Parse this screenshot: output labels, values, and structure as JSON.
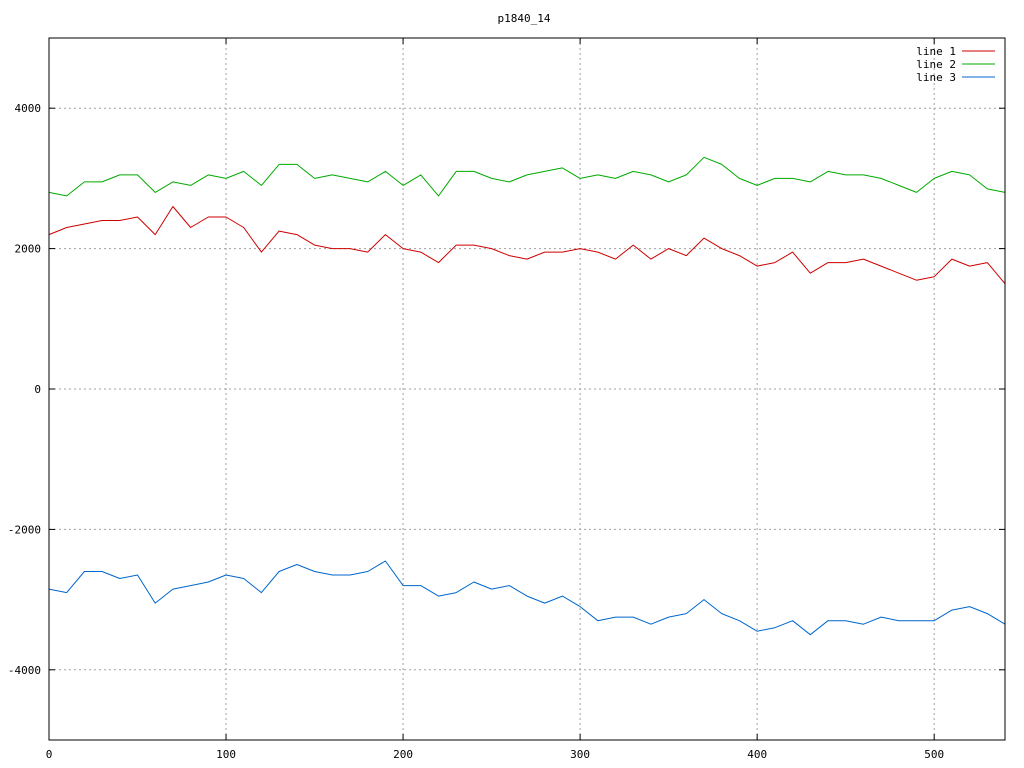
{
  "chart_data": {
    "type": "line",
    "title": "p1840_14",
    "xlabel": "",
    "ylabel": "",
    "xlim": [
      0,
      540
    ],
    "ylim": [
      -5000,
      5000
    ],
    "xticks": [
      0,
      100,
      200,
      300,
      400,
      500
    ],
    "yticks": [
      -4000,
      -2000,
      0,
      2000,
      4000
    ],
    "xtick_labels": [
      "0",
      "100",
      "200",
      "300",
      "400",
      "500"
    ],
    "ytick_labels": [
      "-4000",
      "-2000",
      "0",
      "2000",
      "4000"
    ],
    "grid": true,
    "legend_position": "top-right",
    "series": [
      {
        "name": "line 1",
        "color": "#cc0000",
        "x": [
          0,
          10,
          20,
          30,
          40,
          50,
          60,
          70,
          80,
          90,
          100,
          110,
          120,
          130,
          140,
          150,
          160,
          170,
          180,
          190,
          200,
          210,
          220,
          230,
          240,
          250,
          260,
          270,
          280,
          290,
          300,
          310,
          320,
          330,
          340,
          350,
          360,
          370,
          380,
          390,
          400,
          410,
          420,
          430,
          440,
          450,
          460,
          470,
          480,
          490,
          500,
          510,
          520,
          530,
          540
        ],
        "values": [
          2200,
          2300,
          2350,
          2400,
          2400,
          2450,
          2200,
          2600,
          2300,
          2450,
          2450,
          2300,
          1950,
          2250,
          2200,
          2050,
          2000,
          2000,
          1950,
          2200,
          2000,
          1950,
          1800,
          2050,
          2050,
          2000,
          1900,
          1850,
          1950,
          1950,
          2000,
          1950,
          1850,
          2050,
          1850,
          2000,
          1900,
          2150,
          2000,
          1900,
          1750,
          1800,
          1950,
          1650,
          1800,
          1800,
          1850,
          1750,
          1650,
          1550,
          1600,
          1850,
          1750,
          1800,
          1500
        ]
      },
      {
        "name": "line 2",
        "color": "#00aa00",
        "x": [
          0,
          10,
          20,
          30,
          40,
          50,
          60,
          70,
          80,
          90,
          100,
          110,
          120,
          130,
          140,
          150,
          160,
          170,
          180,
          190,
          200,
          210,
          220,
          230,
          240,
          250,
          260,
          270,
          280,
          290,
          300,
          310,
          320,
          330,
          340,
          350,
          360,
          370,
          380,
          390,
          400,
          410,
          420,
          430,
          440,
          450,
          460,
          470,
          480,
          490,
          500,
          510,
          520,
          530,
          540
        ],
        "values": [
          2800,
          2750,
          2950,
          2950,
          3050,
          3050,
          2800,
          2950,
          2900,
          3050,
          3000,
          3100,
          2900,
          3200,
          3200,
          3000,
          3050,
          3000,
          2950,
          3100,
          2900,
          3050,
          2750,
          3100,
          3100,
          3000,
          2950,
          3050,
          3100,
          3150,
          3000,
          3050,
          3000,
          3100,
          3050,
          2950,
          3050,
          3300,
          3200,
          3000,
          2900,
          3000,
          3000,
          2950,
          3100,
          3050,
          3050,
          3000,
          2900,
          2800,
          3000,
          3100,
          3050,
          2850,
          2800
        ]
      },
      {
        "name": "line 3",
        "color": "#0066cc",
        "x": [
          0,
          10,
          20,
          30,
          40,
          50,
          60,
          70,
          80,
          90,
          100,
          110,
          120,
          130,
          140,
          150,
          160,
          170,
          180,
          190,
          200,
          210,
          220,
          230,
          240,
          250,
          260,
          270,
          280,
          290,
          300,
          310,
          320,
          330,
          340,
          350,
          360,
          370,
          380,
          390,
          400,
          410,
          420,
          430,
          440,
          450,
          460,
          470,
          480,
          490,
          500,
          510,
          520,
          530,
          540
        ],
        "values": [
          -2850,
          -2900,
          -2600,
          -2600,
          -2700,
          -2650,
          -3050,
          -2850,
          -2800,
          -2750,
          -2650,
          -2700,
          -2900,
          -2600,
          -2500,
          -2600,
          -2650,
          -2650,
          -2600,
          -2450,
          -2800,
          -2800,
          -2950,
          -2900,
          -2750,
          -2850,
          -2800,
          -2950,
          -3050,
          -2950,
          -3100,
          -3300,
          -3250,
          -3250,
          -3350,
          -3250,
          -3200,
          -3000,
          -3200,
          -3300,
          -3450,
          -3400,
          -3300,
          -3500,
          -3300,
          -3300,
          -3350,
          -3250,
          -3300,
          -3300,
          -3300,
          -3150,
          -3100,
          -3200,
          -3350
        ]
      }
    ]
  }
}
